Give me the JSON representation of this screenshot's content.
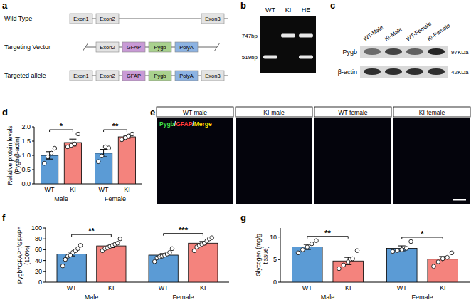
{
  "panel_labels": [
    "a",
    "b",
    "c",
    "d",
    "e",
    "f",
    "g"
  ],
  "diagram": {
    "rows": [
      {
        "label": "Wild Type",
        "boxes": [
          {
            "label": "Exon1",
            "color": "#e3e3e3"
          },
          {
            "label": "Exon2",
            "color": "#e3e3e3"
          },
          {
            "label": "Exon3",
            "color": "#e3e3e3"
          }
        ]
      },
      {
        "label": "Targeting Vector",
        "boxes": [
          {
            "label": "Exon2",
            "color": "#e3e3e3"
          },
          {
            "label": "GFAP",
            "color": "#c99ad6"
          },
          {
            "label": "Pygb",
            "color": "#a9d18e"
          },
          {
            "label": "PolyA",
            "color": "#8db3e2"
          }
        ]
      },
      {
        "label": "Targeted allele",
        "boxes": [
          {
            "label": "Exon1",
            "color": "#e3e3e3"
          },
          {
            "label": "Exon2",
            "color": "#e3e3e3"
          },
          {
            "label": "GFAP",
            "color": "#c99ad6"
          },
          {
            "label": "Pygb",
            "color": "#a9d18e"
          },
          {
            "label": "PolyA",
            "color": "#8db3e2"
          },
          {
            "label": "Exon3",
            "color": "#e3e3e3"
          }
        ]
      }
    ]
  },
  "gel": {
    "lanes": [
      "WT",
      "KI",
      "HE"
    ],
    "sizes": [
      "747bp",
      "519bp"
    ]
  },
  "blot": {
    "lanes": [
      "WT-Male",
      "KI-Male",
      "WT-Female",
      "KI-Female"
    ],
    "rows": [
      {
        "protein": "Pygb",
        "size": "97KDa"
      },
      {
        "protein": "β-actin",
        "size": "42KDa"
      }
    ]
  },
  "images": {
    "columns": [
      "WT-male",
      "KI-male",
      "WT-female",
      "KI-female"
    ],
    "legend": [
      {
        "text": "Pygb",
        "color": "#3fe04a"
      },
      {
        "text": "/",
        "color": "#ffffff"
      },
      {
        "text": "GFAP",
        "color": "#ff3a3a"
      },
      {
        "text": "/",
        "color": "#ffffff"
      },
      {
        "text": "Merge",
        "color": "#ffd800"
      }
    ]
  },
  "chart_data": [
    {
      "type": "bar",
      "ylabel": "Relative protein levels (Pygb/β-actin)",
      "categories": [
        "WT",
        "KI",
        "WT",
        "KI"
      ],
      "groups": [
        "Male",
        "Female"
      ],
      "values": [
        1.0,
        1.45,
        1.08,
        1.65
      ],
      "errors": [
        0.13,
        0.12,
        0.13,
        0.05
      ],
      "points": [
        [
          0.72,
          0.95,
          1.08,
          1.25
        ],
        [
          1.3,
          1.35,
          1.4,
          1.75
        ],
        [
          0.78,
          0.98,
          1.3,
          1.26
        ],
        [
          1.55,
          1.62,
          1.68,
          1.75
        ]
      ],
      "colors": [
        "#5b9bd5",
        "#f4837d",
        "#5b9bd5",
        "#f4837d"
      ],
      "ylim": [
        0,
        2
      ],
      "yticks": [
        {
          "value": 0,
          "label": "0.0"
        },
        {
          "value": 0.5,
          "label": "0.5"
        },
        {
          "value": 1,
          "label": "1.0"
        },
        {
          "value": 1.5,
          "label": "1.5"
        },
        {
          "value": 2,
          "label": "2.0"
        }
      ],
      "annotations": [
        "*",
        "**"
      ]
    },
    {
      "type": "bar",
      "ylabel": "Pygb⁺GFAP⁺/GFAP⁺ (100%)",
      "categories": [
        "WT",
        "KI",
        "WT",
        "KI"
      ],
      "groups": [
        "Male",
        "Female"
      ],
      "values": [
        52,
        67,
        50,
        72
      ],
      "errors": [
        3.5,
        3.0,
        2.8,
        3.2
      ],
      "points": [
        [
          30,
          42,
          48,
          50,
          55,
          58,
          62,
          68
        ],
        [
          58,
          62,
          64,
          66,
          68,
          70,
          72,
          80
        ],
        [
          38,
          45,
          47,
          48,
          50,
          52,
          55,
          62
        ],
        [
          58,
          65,
          68,
          70,
          72,
          76,
          80,
          82
        ]
      ],
      "colors": [
        "#5b9bd5",
        "#f4837d",
        "#5b9bd5",
        "#f4837d"
      ],
      "ylim": [
        0,
        100
      ],
      "yticks": [
        0,
        20,
        40,
        60,
        80,
        100
      ],
      "annotations": [
        "**",
        "***"
      ]
    },
    {
      "type": "bar",
      "ylabel": "Glycogen (mg/g tissue)",
      "categories": [
        "WT",
        "KI",
        "WT",
        "KI"
      ],
      "groups": [
        "Male",
        "Female"
      ],
      "values": [
        7.8,
        4.7,
        7.5,
        5.1
      ],
      "errors": [
        0.55,
        0.8,
        0.55,
        0.6
      ],
      "points": [
        [
          6.5,
          7.2,
          7.8,
          8.5,
          9.2
        ],
        [
          3.0,
          3.8,
          4.5,
          5.2,
          7.0
        ],
        [
          6.8,
          7.0,
          7.2,
          7.5,
          9.0
        ],
        [
          3.5,
          4.5,
          5.2,
          5.5,
          6.5
        ]
      ],
      "colors": [
        "#5b9bd5",
        "#f4837d",
        "#5b9bd5",
        "#f4837d"
      ],
      "ylim": [
        0,
        12
      ],
      "yticks": [
        0,
        5,
        10
      ],
      "annotations": [
        "**",
        "*"
      ]
    }
  ]
}
